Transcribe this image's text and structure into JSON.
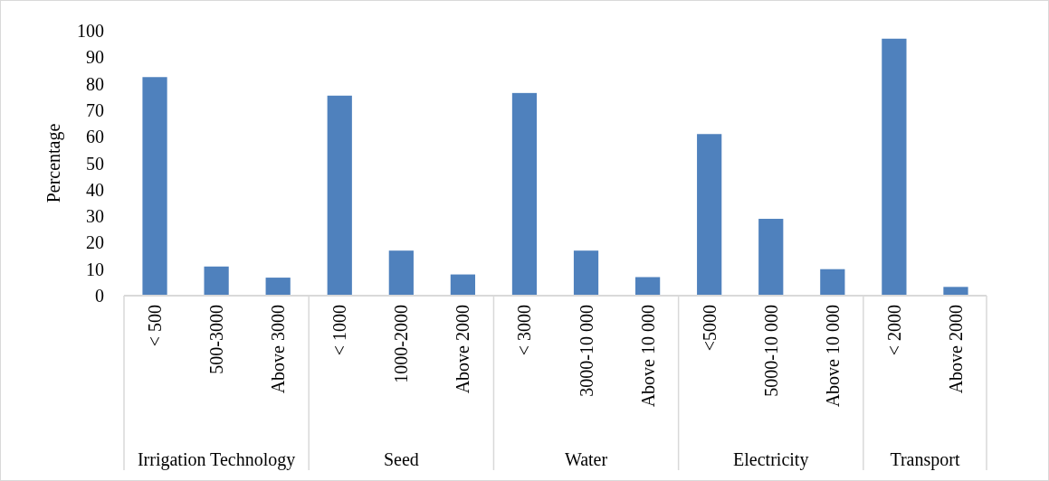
{
  "chart_data": {
    "type": "bar",
    "ylabel": "Percentage",
    "categories": [
      "< 500",
      "500-3000",
      "Above 3000",
      "< 1000",
      "1000-2000",
      "Above 2000",
      "< 3000",
      "3000-10 000",
      "Above 10 000",
      "<5000",
      "5000-10 000",
      "Above 10 000",
      "< 2000",
      "Above 2000"
    ],
    "values": [
      82.5,
      11,
      6.8,
      75.5,
      17,
      8,
      76.5,
      17,
      7,
      61,
      29,
      10,
      97,
      3.3
    ],
    "color": "#4f81bd",
    "ylim": [
      0,
      100
    ],
    "yticks": [
      0,
      10,
      20,
      30,
      40,
      50,
      60,
      70,
      80,
      90,
      100
    ],
    "grid": false,
    "annotations": [
      "Irrigation Technology",
      "Seed",
      "Water",
      "Electricity",
      "Transport"
    ]
  }
}
